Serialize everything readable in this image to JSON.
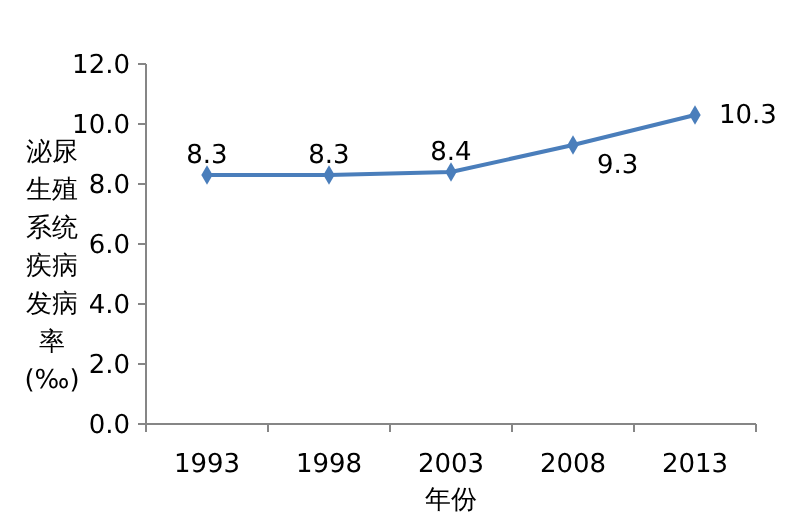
{
  "chart_data": {
    "type": "line",
    "categories": [
      "1993",
      "1998",
      "2003",
      "2008",
      "2013"
    ],
    "series": [
      {
        "color": "#4a7ebb",
        "values": [
          8.3,
          8.3,
          8.4,
          9.3,
          10.3
        ]
      }
    ],
    "ylim": [
      0,
      12
    ],
    "yticks": [
      {
        "value": 0,
        "label": "0.0"
      },
      {
        "value": 2,
        "label": "2.0"
      },
      {
        "value": 4,
        "label": "4.0"
      },
      {
        "value": 6,
        "label": "6.0"
      },
      {
        "value": 8,
        "label": "8.0"
      },
      {
        "value": 10,
        "label": "10.0"
      },
      {
        "value": 12,
        "label": "12.0"
      }
    ],
    "xlabel": "年份",
    "ylabel": "泌尿生殖系统疾病发病率(‰)",
    "data_labels": true,
    "marker": "diamond",
    "line_style": "solid",
    "grid": false
  }
}
